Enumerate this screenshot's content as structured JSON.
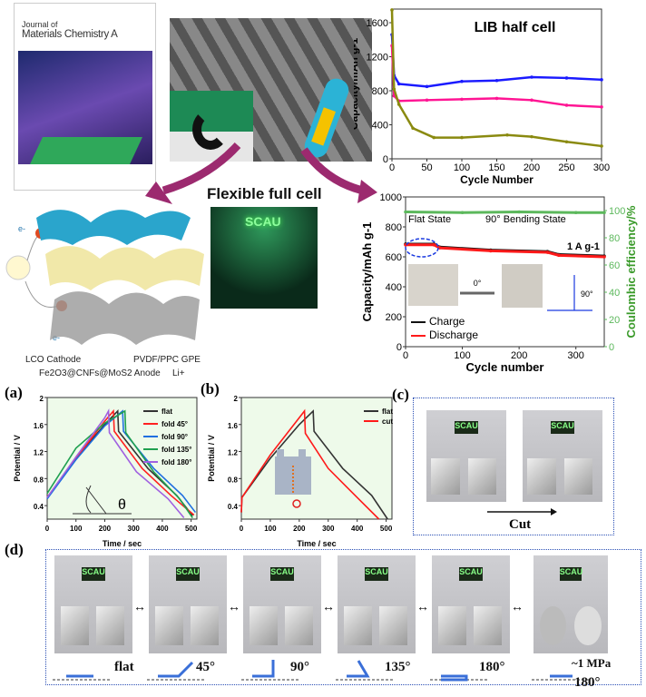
{
  "cover": {
    "journal_line1": "Journal of",
    "journal_line2": "Materials Chemistry A"
  },
  "center": {
    "title": "Flexible full cell",
    "led_text": "SCAU"
  },
  "schematic": {
    "electron_label": "e-",
    "legend": [
      "LCO Cathode",
      "PVDF/PPC GPE",
      "Fe2O3@CNFs@MoS2 Anode",
      "Li+"
    ]
  },
  "panel_labels": {
    "a": "(a)",
    "b": "(b)",
    "c": "(c)",
    "d": "(d)"
  },
  "panel_c": {
    "arrow_label": "Cut",
    "led_text": "SCAU"
  },
  "panel_d": {
    "states": [
      "flat",
      "45°",
      "90°",
      "135°",
      "180°",
      "180°"
    ],
    "pressure": "~1 MPa",
    "led_text": "SCAU"
  },
  "colors": {
    "arrow": "#9c2a6f",
    "dotted_box": "#2a4fb5",
    "plot_bg": "#eefaea"
  },
  "chart_data": [
    {
      "type": "line",
      "title": "LIB half cell",
      "xlabel": "Cycle Number",
      "ylabel": "Capacity/mAh g-1",
      "xlim": [
        0,
        300
      ],
      "ylim": [
        0,
        1760
      ],
      "xticks": [
        0,
        50,
        100,
        150,
        200,
        250,
        300
      ],
      "yticks": [
        0,
        400,
        800,
        1200,
        1600
      ],
      "series": [
        {
          "color": "#1a1aff",
          "x": [
            0,
            3,
            10,
            50,
            100,
            150,
            200,
            250,
            300
          ],
          "y": [
            1460,
            980,
            880,
            850,
            910,
            920,
            960,
            950,
            930
          ]
        },
        {
          "color": "#ff1493",
          "x": [
            0,
            3,
            10,
            50,
            100,
            150,
            200,
            250,
            300
          ],
          "y": [
            1330,
            740,
            680,
            690,
            700,
            710,
            690,
            630,
            610
          ]
        },
        {
          "color": "#8a8a10",
          "x": [
            0,
            3,
            10,
            30,
            60,
            100,
            165,
            200,
            250,
            300
          ],
          "y": [
            1750,
            820,
            640,
            360,
            250,
            250,
            280,
            260,
            200,
            150
          ]
        }
      ]
    },
    {
      "type": "line",
      "xlabel": "Cycle number",
      "ylabel": "Capacity/mAh g-1",
      "y2label": "Coulombic efficiency/%",
      "xlim": [
        0,
        350
      ],
      "ylim": [
        0,
        1000
      ],
      "y2lim": [
        0,
        110
      ],
      "xticks": [
        0,
        100,
        200,
        300
      ],
      "yticks": [
        0,
        200,
        400,
        600,
        800,
        1000
      ],
      "y2ticks": [
        0,
        20,
        40,
        60,
        80,
        100
      ],
      "annotations": [
        "Flat State",
        "90° Bending State",
        "1 A g-1",
        "0°",
        "90°"
      ],
      "legend_position": "bottom-left",
      "series": [
        {
          "name": "Charge",
          "color": "#111111",
          "x": [
            0,
            50,
            60,
            150,
            250,
            270,
            350
          ],
          "y": [
            685,
            685,
            665,
            645,
            635,
            615,
            605
          ]
        },
        {
          "name": "Discharge",
          "color": "#ff1a1a",
          "x": [
            0,
            50,
            60,
            150,
            250,
            270,
            350
          ],
          "y": [
            680,
            680,
            660,
            640,
            630,
            610,
            600
          ]
        },
        {
          "color": "#5cb85c",
          "axis": "y2",
          "x": [
            0,
            100,
            200,
            300,
            350
          ],
          "y": [
            99,
            98.5,
            99,
            98.5,
            98.5
          ]
        }
      ]
    },
    {
      "type": "line",
      "xlabel": "Time / sec",
      "ylabel": "Potential / V",
      "xlim": [
        0,
        520
      ],
      "ylim": [
        0.2,
        2.0
      ],
      "xticks": [
        0,
        100,
        200,
        300,
        400,
        500
      ],
      "yticks": [
        0.4,
        0.8,
        1.2,
        1.6,
        2.0
      ],
      "legend_position": "top-right",
      "inset_label": "θ",
      "series": [
        {
          "name": "flat",
          "color": "#333333",
          "x": [
            0,
            100,
            200,
            245,
            248,
            350,
            450,
            505
          ],
          "y": [
            0.52,
            1.1,
            1.6,
            1.8,
            1.5,
            0.95,
            0.55,
            0.25
          ]
        },
        {
          "name": "fold 45°",
          "color": "#ff2020",
          "x": [
            0,
            100,
            200,
            230,
            233,
            330,
            430,
            510
          ],
          "y": [
            0.52,
            1.1,
            1.65,
            1.8,
            1.5,
            0.95,
            0.55,
            0.26
          ]
        },
        {
          "name": "fold 90°",
          "color": "#1f6fe0",
          "x": [
            0,
            100,
            200,
            262,
            265,
            370,
            470,
            515
          ],
          "y": [
            0.5,
            1.08,
            1.58,
            1.8,
            1.5,
            0.95,
            0.55,
            0.3
          ]
        },
        {
          "name": "fold 135°",
          "color": "#20a050",
          "x": [
            0,
            100,
            200,
            270,
            273,
            370,
            460,
            505
          ],
          "y": [
            0.58,
            1.25,
            1.62,
            1.8,
            1.48,
            0.9,
            0.5,
            0.22
          ]
        },
        {
          "name": "fold 180°",
          "color": "#a060e0",
          "x": [
            0,
            100,
            200,
            213,
            216,
            310,
            420,
            475
          ],
          "y": [
            0.52,
            1.12,
            1.7,
            1.8,
            1.48,
            0.9,
            0.5,
            0.22
          ]
        }
      ]
    },
    {
      "type": "line",
      "xlabel": "Time / sec",
      "ylabel": "Potential / V",
      "xlim": [
        0,
        520
      ],
      "ylim": [
        0.2,
        2.0
      ],
      "xticks": [
        0,
        100,
        200,
        300,
        400,
        500
      ],
      "yticks": [
        0.4,
        0.8,
        1.2,
        1.6,
        2.0
      ],
      "legend_position": "top-right",
      "series": [
        {
          "name": "flat",
          "color": "#333333",
          "x": [
            0,
            2,
            100,
            200,
            248,
            251,
            350,
            450,
            505
          ],
          "y": [
            0.3,
            0.52,
            1.1,
            1.6,
            1.8,
            1.5,
            0.95,
            0.55,
            0.2
          ]
        },
        {
          "name": "cut",
          "color": "#ff1a1a",
          "x": [
            0,
            2,
            100,
            218,
            221,
            300,
            400,
            475
          ],
          "y": [
            0.3,
            0.52,
            1.15,
            1.8,
            1.47,
            0.95,
            0.52,
            0.2
          ]
        }
      ]
    }
  ]
}
